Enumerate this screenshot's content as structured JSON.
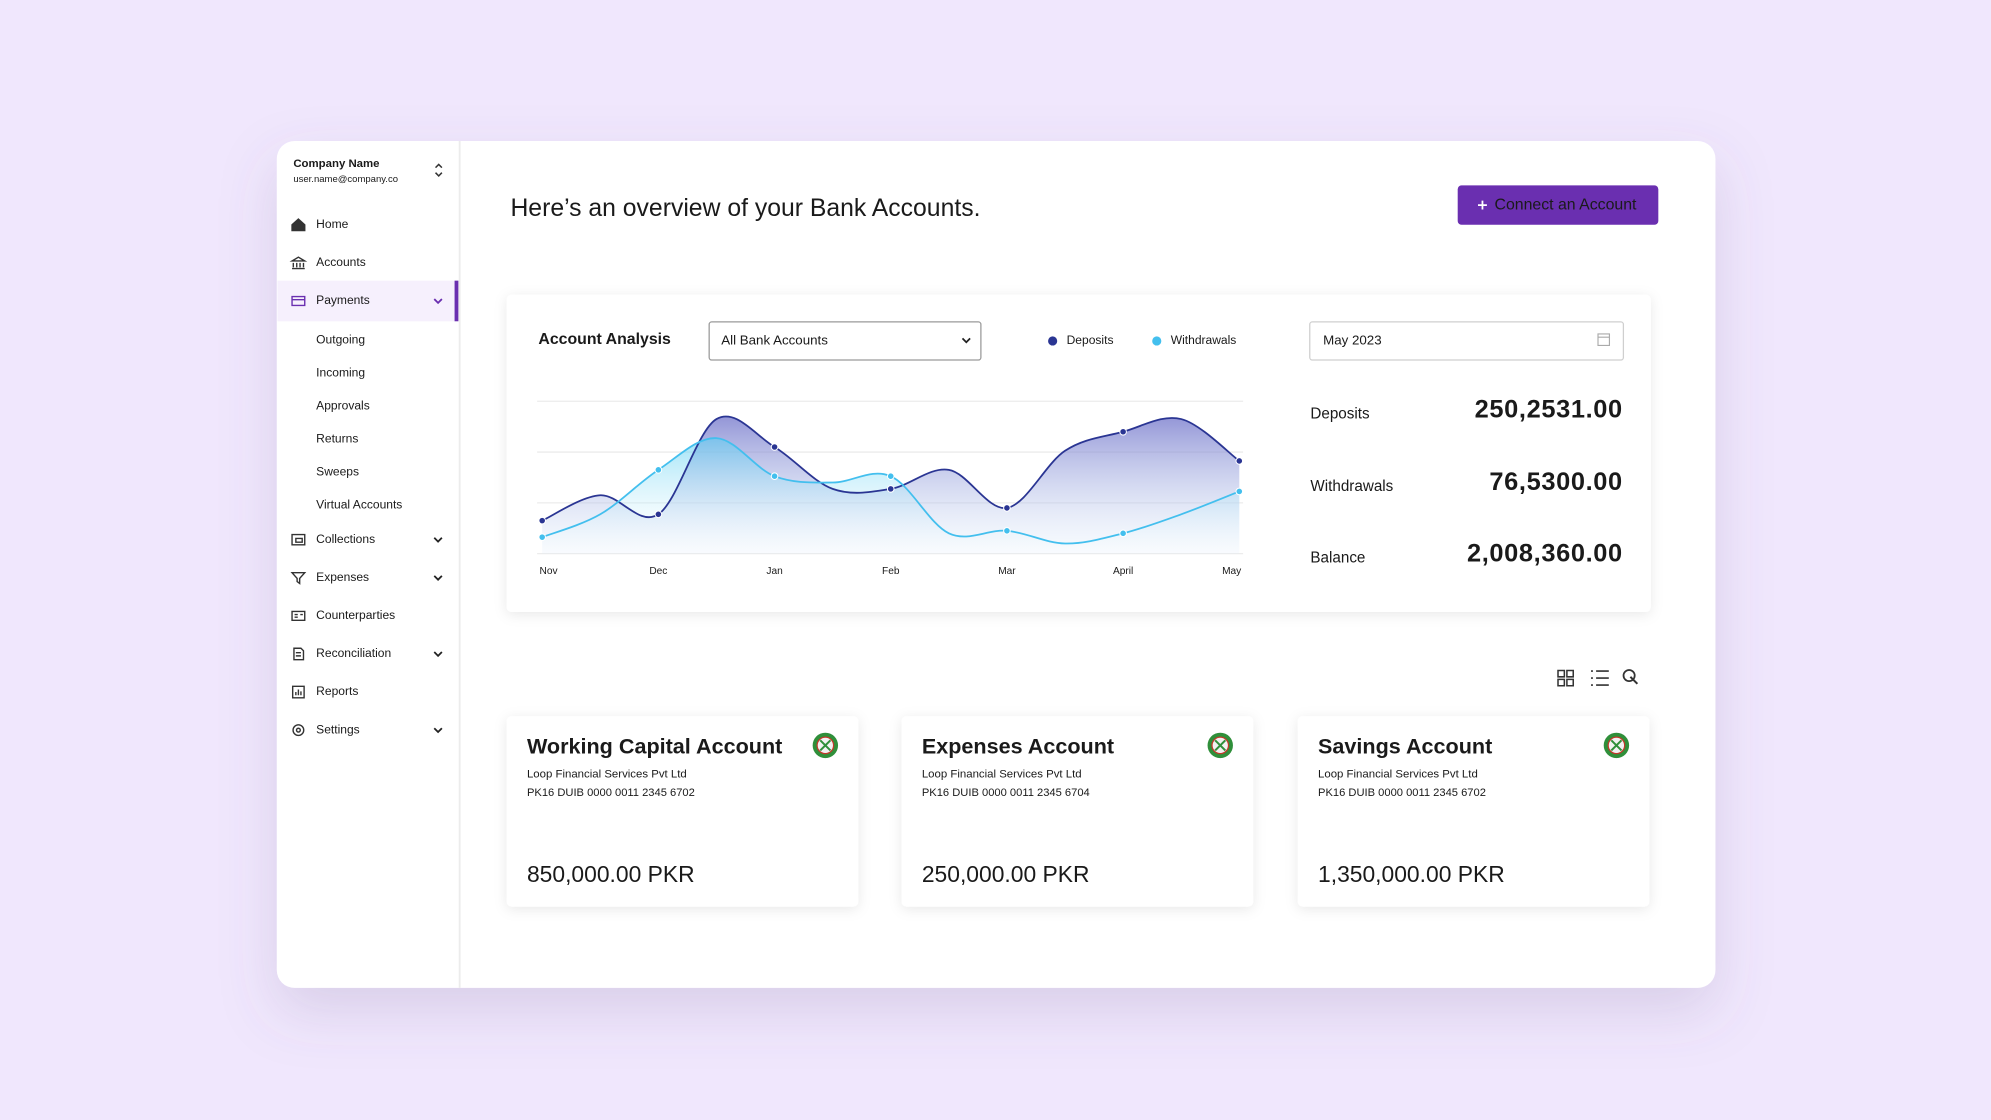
{
  "sidebar": {
    "company": "Company Name",
    "email": "user.name@company.co",
    "nav": [
      {
        "label": "Home"
      },
      {
        "label": "Accounts"
      },
      {
        "label": "Payments",
        "active": true,
        "expandable": true,
        "children": [
          "Outgoing",
          "Incoming",
          "Approvals",
          "Returns",
          "Sweeps",
          "Virtual Accounts"
        ]
      },
      {
        "label": "Collections",
        "expandable": true
      },
      {
        "label": "Expenses",
        "expandable": true
      },
      {
        "label": "Counterparties"
      },
      {
        "label": "Reconciliation",
        "expandable": true
      },
      {
        "label": "Reports"
      },
      {
        "label": "Settings",
        "expandable": true
      }
    ]
  },
  "header": {
    "title": "Here’s an overview of your Bank Accounts.",
    "button": "Connect an Account"
  },
  "analysis": {
    "title": "Account Analysis",
    "account_filter": "All Bank Accounts",
    "date": "May 2023",
    "stats": [
      {
        "label": "Deposits",
        "value": "250,2531.00"
      },
      {
        "label": "Withdrawals",
        "value": "76,5300.00"
      },
      {
        "label": "Balance",
        "value": "2,008,360.00"
      }
    ]
  },
  "chart_data": {
    "type": "line",
    "categories": [
      "Nov",
      null,
      "Dec",
      null,
      "Jan",
      null,
      "Feb",
      null,
      "Mar",
      null,
      "April",
      null,
      "May"
    ],
    "series": [
      {
        "name": "Deposits",
        "color": "#2a3593",
        "values": [
          6.5,
          11.5,
          7.75,
          26.5,
          21,
          12.75,
          12.75,
          16.5,
          9,
          20.25,
          24,
          26.5,
          18.25
        ]
      },
      {
        "name": "Withdrawals",
        "color": "#43bfee",
        "values": [
          3.25,
          7.75,
          16.5,
          22.75,
          15.25,
          14,
          15.25,
          4,
          4.5,
          2,
          4,
          7.75,
          12.25
        ]
      }
    ],
    "ylim": [
      0,
      30
    ],
    "yticks": [
      0,
      10,
      20,
      30
    ],
    "grid": true
  },
  "accounts": [
    {
      "name": "Working Capital Account",
      "bank": "Loop Financial Services Pvt Ltd",
      "iban": "PK16 DUIB 0000 0011 2345 6702",
      "balance": "850,000.00 PKR"
    },
    {
      "name": "Expenses Account",
      "bank": "Loop Financial Services Pvt Ltd",
      "iban": "PK16 DUIB 0000 0011 2345 6704",
      "balance": "250,000.00 PKR"
    },
    {
      "name": "Savings Account",
      "bank": "Loop Financial Services Pvt Ltd",
      "iban": "PK16 DUIB 0000 0011 2345 6702",
      "balance": "1,350,000.00 PKR"
    }
  ]
}
